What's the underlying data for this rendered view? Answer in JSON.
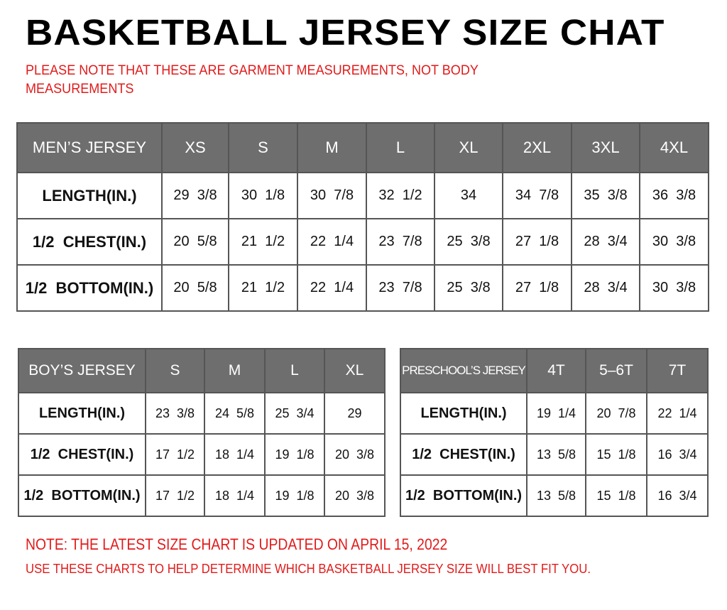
{
  "title": "BASKETBALL JERSEY SIZE CHAT",
  "subtitle_line1": "PLEASE NOTE THAT THESE ARE GARMENT MEASUREMENTS, NOT BODY",
  "subtitle_line2": "MEASUREMENTS",
  "tables": {
    "mens": {
      "header": [
        "MEN’S JERSEY",
        "XS",
        "S",
        "M",
        "L",
        "XL",
        "2XL",
        "3XL",
        "4XL"
      ],
      "rows": [
        [
          "LENGTH(IN.)",
          "29  3/8",
          "30  1/8",
          "30  7/8",
          "32  1/2",
          "34",
          "34  7/8",
          "35  3/8",
          "36  3/8"
        ],
        [
          "1/2  CHEST(IN.)",
          "20  5/8",
          "21  1/2",
          "22  1/4",
          "23  7/8",
          "25  3/8",
          "27  1/8",
          "28  3/4",
          "30  3/8"
        ],
        [
          "1/2  BOTTOM(IN.)",
          "20  5/8",
          "21  1/2",
          "22  1/4",
          "23  7/8",
          "25  3/8",
          "27  1/8",
          "28  3/4",
          "30  3/8"
        ]
      ]
    },
    "boys": {
      "header": [
        "BOY’S JERSEY",
        "S",
        "M",
        "L",
        "XL"
      ],
      "rows": [
        [
          "LENGTH(IN.)",
          "23  3/8",
          "24  5/8",
          "25  3/4",
          "29"
        ],
        [
          "1/2  CHEST(IN.)",
          "17  1/2",
          "18  1/4",
          "19  1/8",
          "20  3/8"
        ],
        [
          "1/2  BOTTOM(IN.)",
          "17  1/2",
          "18  1/4",
          "19  1/8",
          "20  3/8"
        ]
      ]
    },
    "preschool": {
      "header": [
        "PRESCHOOL’S JERSEY",
        "4T",
        "5–6T",
        "7T"
      ],
      "rows": [
        [
          "LENGTH(IN.)",
          "19  1/4",
          "20  7/8",
          "22  1/4"
        ],
        [
          "1/2  CHEST(IN.)",
          "13  5/8",
          "15  1/8",
          "16  3/4"
        ],
        [
          "1/2  BOTTOM(IN.)",
          "13  5/8",
          "15  1/8",
          "16  3/4"
        ]
      ]
    }
  },
  "note_line1": "NOTE: THE LATEST SIZE CHART IS UPDATED ON APRIL 15, 2022",
  "note_line2": "USE THESE CHARTS TO HELP DETERMINE WHICH  BASKETBALL JERSEY  SIZE WILL BEST FIT YOU.",
  "colors": {
    "header_bg": "#6e6e6e",
    "note_red": "#e21a1a"
  }
}
